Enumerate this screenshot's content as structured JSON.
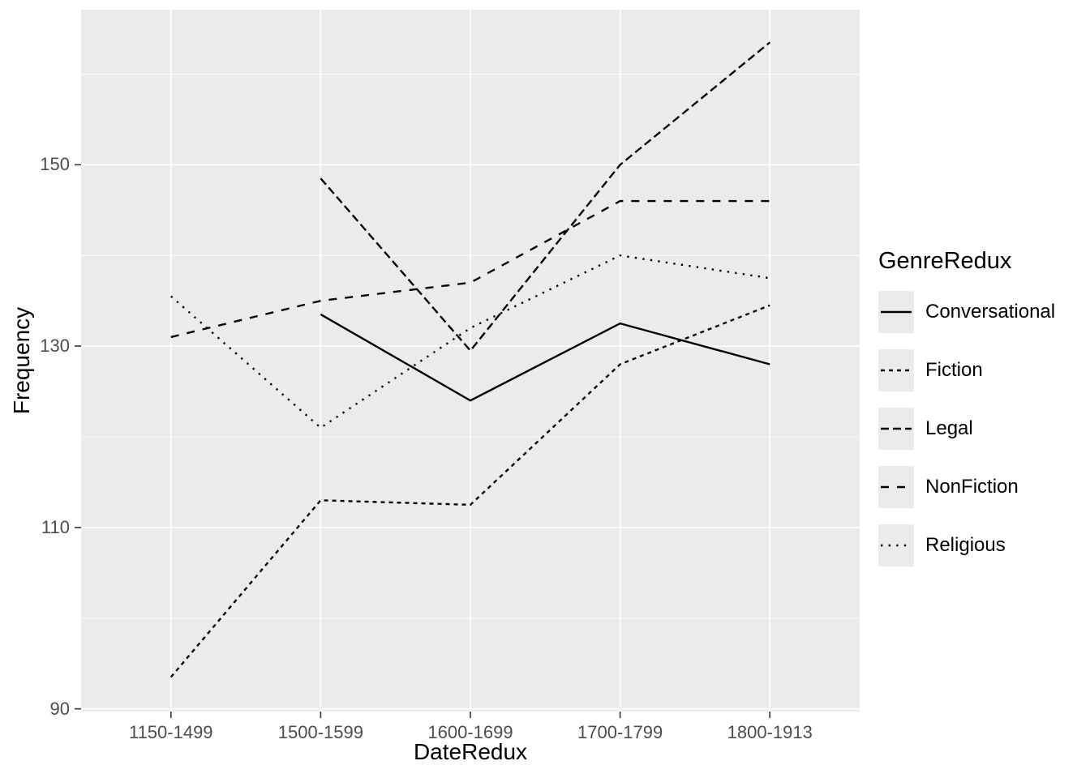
{
  "chart_data": {
    "type": "line",
    "title": "",
    "xlabel": "DateRedux",
    "ylabel": "Frequency",
    "legend_title": "GenreRedux",
    "legend_position": "right",
    "grid": "major+minor",
    "categories": [
      "1150-1499",
      "1500-1599",
      "1600-1699",
      "1700-1799",
      "1800-1913"
    ],
    "series": [
      {
        "name": "Conversational",
        "linetype": "solid",
        "values": [
          null,
          133.5,
          124,
          132.5,
          128
        ]
      },
      {
        "name": "Fiction",
        "linetype": "dashed-short",
        "values": [
          93.5,
          113,
          112.5,
          128,
          134.5
        ]
      },
      {
        "name": "Legal",
        "linetype": "dashed-medium",
        "values": [
          null,
          148.5,
          129.5,
          150,
          163.5
        ]
      },
      {
        "name": "NonFiction",
        "linetype": "dashed-long",
        "values": [
          131,
          135,
          137,
          146,
          146
        ]
      },
      {
        "name": "Religious",
        "linetype": "dotted",
        "values": [
          135.5,
          121,
          132,
          140,
          137.5
        ]
      }
    ],
    "y_ticks": [
      90,
      110,
      130,
      150
    ],
    "y_minor_ticks": [
      100,
      120,
      140,
      160
    ],
    "ylim": [
      89.7,
      167.1
    ],
    "colors": {
      "line": "#000000",
      "panel_bg": "#EBEBEB",
      "grid": "#FFFFFF",
      "tick_mark": "#333333",
      "tick_label": "#4D4D4D",
      "axis_title": "#000000",
      "legend_key_bg": "#EBEBEB",
      "page_bg": "#FFFFFF"
    }
  }
}
